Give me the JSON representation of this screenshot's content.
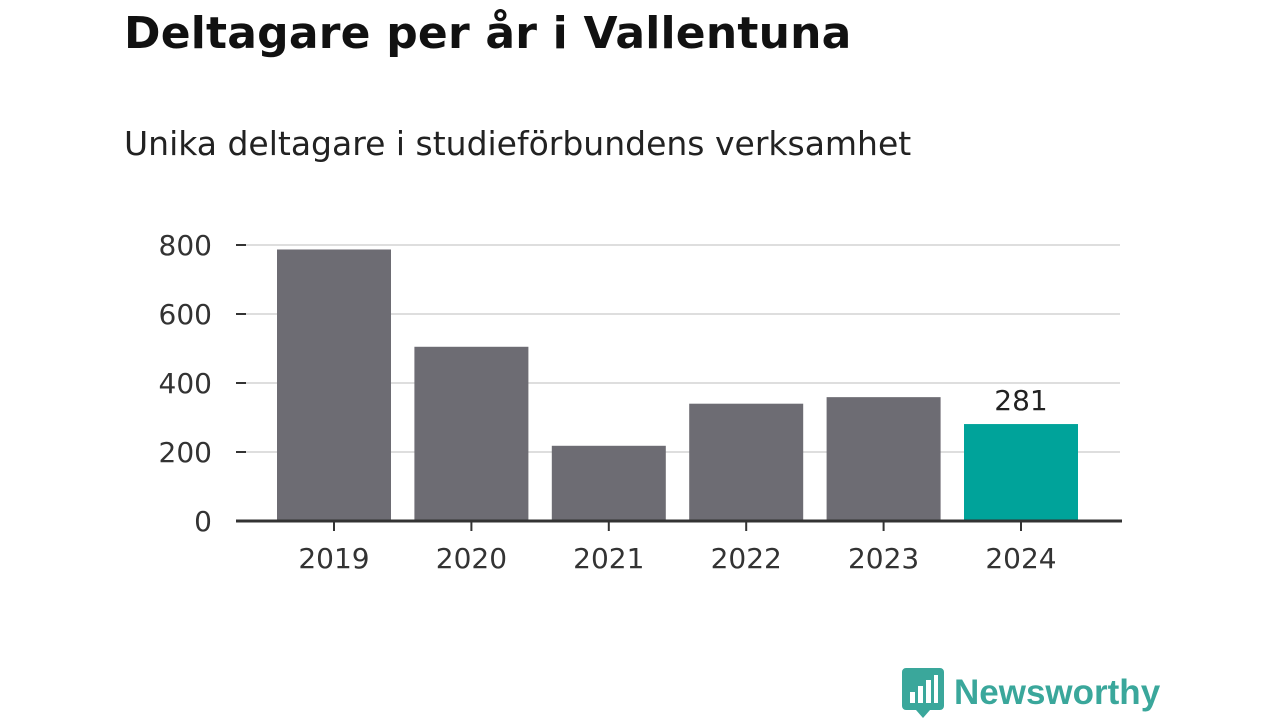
{
  "header": {
    "title": "Deltagare per år i Vallentuna",
    "subtitle": "Unika deltagare i studieförbundens verksamhet"
  },
  "brand": {
    "name": "Newsworthy",
    "icon": "bar-chart-bubble-icon",
    "color": "#3aa79b"
  },
  "chart_data": {
    "type": "bar",
    "categories": [
      "2019",
      "2020",
      "2021",
      "2022",
      "2023",
      "2024"
    ],
    "values": [
      787,
      505,
      218,
      340,
      359,
      281
    ],
    "ylim": [
      0,
      800
    ],
    "yticks": [
      0,
      200,
      400,
      600,
      800
    ],
    "grid": true,
    "bar_color": "#6d6c73",
    "highlight_color": "#00a39a",
    "highlight_index": 5,
    "data_labels": [
      {
        "index": 5,
        "text": "281"
      }
    ]
  }
}
